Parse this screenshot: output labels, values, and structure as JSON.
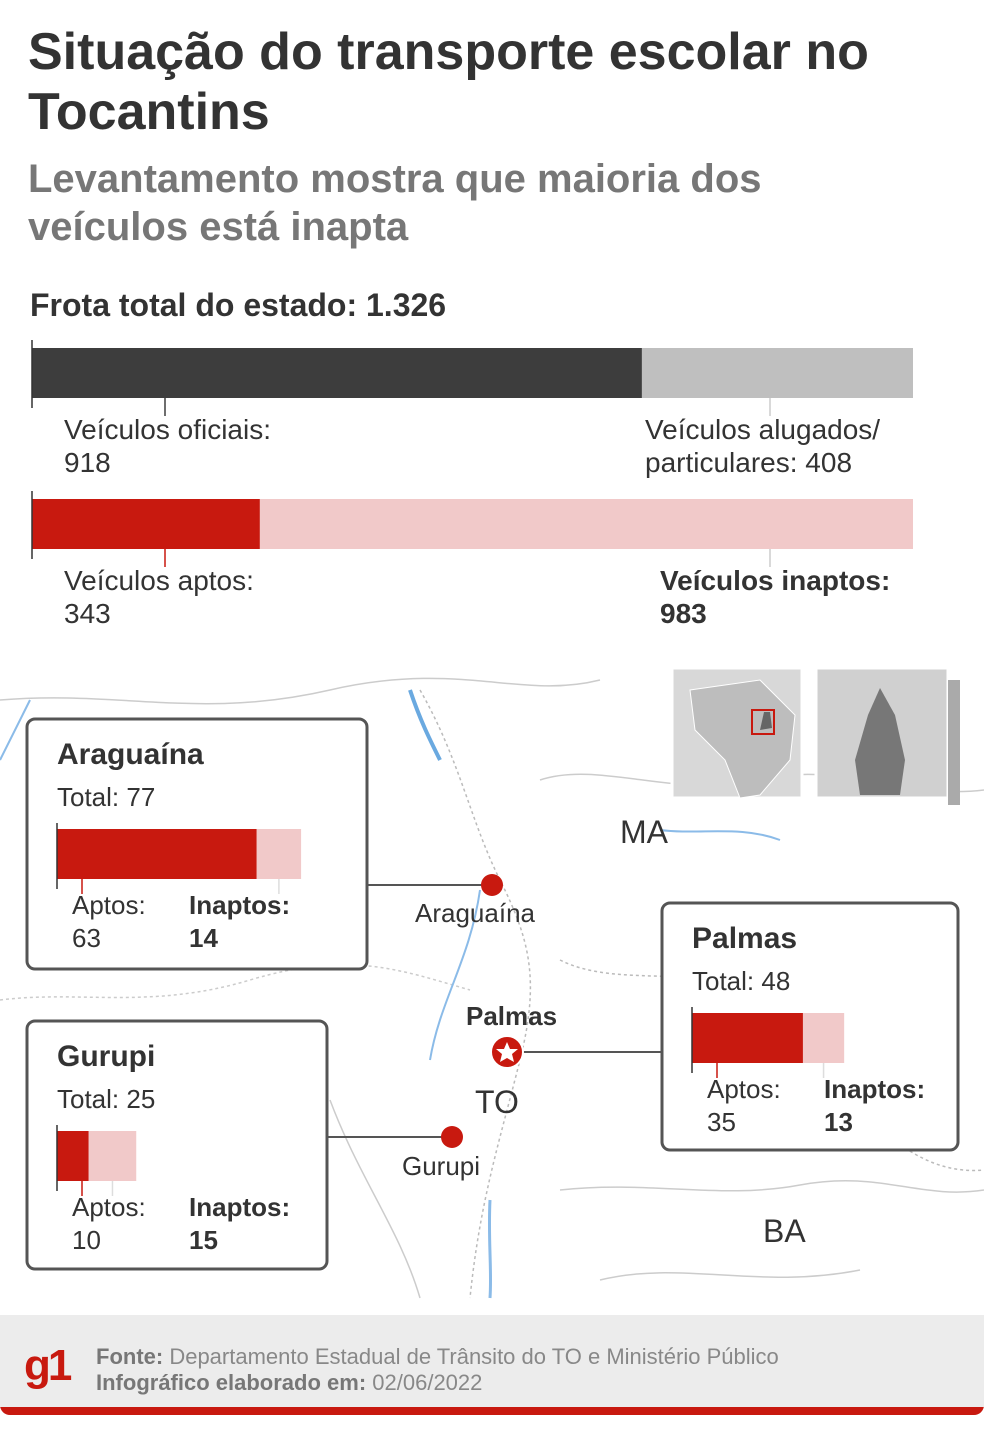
{
  "header": {
    "title": "Situação do transporte escolar no Tocantins",
    "subtitle": "Levantamento mostra que maioria dos veículos está inapta"
  },
  "fleet": {
    "label": "Frota total do estado: 1.326",
    "bars": [
      {
        "segments": [
          {
            "label": "Veículos oficiais:",
            "value": 918,
            "color": "#3d3d3d"
          },
          {
            "label": "Veículos alugados/ particulares:",
            "value": 408,
            "color": "#bfbfbf"
          }
        ]
      },
      {
        "segments": [
          {
            "label": "Veículos aptos:",
            "value": 343,
            "color": "#c8190f"
          },
          {
            "label": "Veículos inaptos:",
            "value": 983,
            "color": "#f1c9c9"
          }
        ]
      }
    ]
  },
  "cities": [
    {
      "name": "Araguaína",
      "total_label": "Total:",
      "total": 77,
      "aptos_label": "Aptos:",
      "aptos": 63,
      "inaptos_label": "Inaptos:",
      "inaptos": 14
    },
    {
      "name": "Gurupi",
      "total_label": "Total:",
      "total": 25,
      "aptos_label": "Aptos:",
      "aptos": 10,
      "inaptos_label": "Inaptos:",
      "inaptos": 15
    },
    {
      "name": "Palmas",
      "total_label": "Total:",
      "total": 48,
      "aptos_label": "Aptos:",
      "aptos": 35,
      "inaptos_label": "Inaptos:",
      "inaptos": 13
    }
  ],
  "map_labels": [
    "MA",
    "TO",
    "BA"
  ],
  "footer": {
    "logo": "g1",
    "source_label": "Fonte:",
    "source": "Departamento Estadual de Trânsito do TO e Ministério Público",
    "date_label": "Infográfico elaborado em:",
    "date": "02/06/2022"
  }
}
